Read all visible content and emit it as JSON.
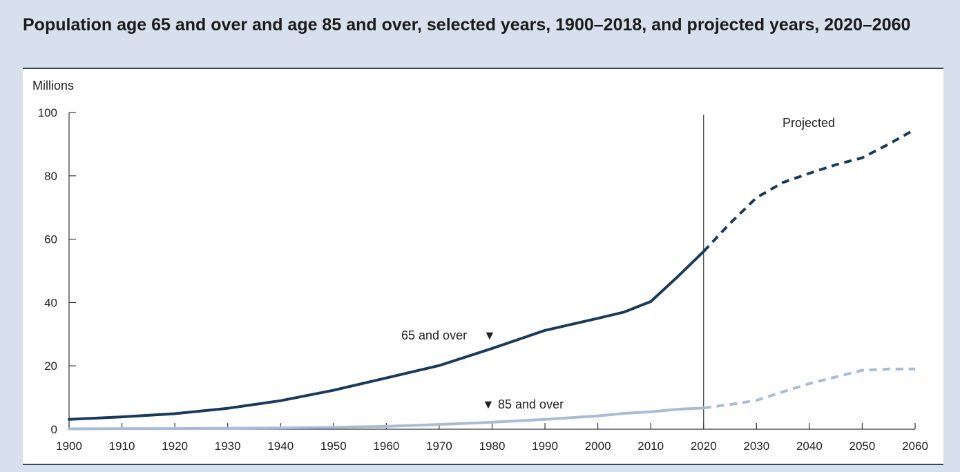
{
  "page": {
    "title": "Population age 65 and over and age 85 and over, selected years, 1900–2018, and projected years, 2020–2060"
  },
  "colors": {
    "background": "#d7e0ec",
    "panel": "#ffffff",
    "series_65": "#1a3a5c",
    "series_85": "#a9bcd6",
    "axis": "#333333"
  },
  "chart_data": {
    "type": "line",
    "title": "Population age 65 and over and age 85 and over, selected years, 1900–2018, and projected years, 2020–2060",
    "ylabel": "Millions",
    "xlabel": "",
    "xlim": [
      1900,
      2060
    ],
    "ylim": [
      0,
      100
    ],
    "x_ticks": [
      1900,
      1910,
      1920,
      1930,
      1940,
      1950,
      1960,
      1970,
      1980,
      1990,
      2000,
      2010,
      2020,
      2030,
      2040,
      2050,
      2060
    ],
    "y_ticks": [
      0,
      20,
      40,
      60,
      80,
      100
    ],
    "grid": false,
    "divider": {
      "x": 2020,
      "label": "Projected"
    },
    "series": [
      {
        "name": "65 and over",
        "historical": [
          {
            "x": 1900,
            "y": 3.1
          },
          {
            "x": 1910,
            "y": 3.9
          },
          {
            "x": 1920,
            "y": 4.9
          },
          {
            "x": 1930,
            "y": 6.6
          },
          {
            "x": 1940,
            "y": 9.0
          },
          {
            "x": 1950,
            "y": 12.3
          },
          {
            "x": 1960,
            "y": 16.2
          },
          {
            "x": 1970,
            "y": 20.1
          },
          {
            "x": 1980,
            "y": 25.5
          },
          {
            "x": 1990,
            "y": 31.2
          },
          {
            "x": 2000,
            "y": 35.0
          },
          {
            "x": 2005,
            "y": 37.0
          },
          {
            "x": 2010,
            "y": 40.3
          },
          {
            "x": 2015,
            "y": 48.0
          },
          {
            "x": 2020,
            "y": 56.1
          }
        ],
        "projected": [
          {
            "x": 2020,
            "y": 56.1
          },
          {
            "x": 2025,
            "y": 65.0
          },
          {
            "x": 2030,
            "y": 73.1
          },
          {
            "x": 2035,
            "y": 77.9
          },
          {
            "x": 2040,
            "y": 80.8
          },
          {
            "x": 2045,
            "y": 83.5
          },
          {
            "x": 2050,
            "y": 85.7
          },
          {
            "x": 2055,
            "y": 90.0
          },
          {
            "x": 2060,
            "y": 94.7
          }
        ]
      },
      {
        "name": "85 and over",
        "historical": [
          {
            "x": 1900,
            "y": 0.1
          },
          {
            "x": 1910,
            "y": 0.2
          },
          {
            "x": 1920,
            "y": 0.2
          },
          {
            "x": 1930,
            "y": 0.3
          },
          {
            "x": 1940,
            "y": 0.4
          },
          {
            "x": 1950,
            "y": 0.6
          },
          {
            "x": 1960,
            "y": 0.9
          },
          {
            "x": 1970,
            "y": 1.5
          },
          {
            "x": 1980,
            "y": 2.2
          },
          {
            "x": 1990,
            "y": 3.1
          },
          {
            "x": 2000,
            "y": 4.2
          },
          {
            "x": 2005,
            "y": 5.0
          },
          {
            "x": 2010,
            "y": 5.5
          },
          {
            "x": 2015,
            "y": 6.3
          },
          {
            "x": 2020,
            "y": 6.7
          }
        ],
        "projected": [
          {
            "x": 2020,
            "y": 6.7
          },
          {
            "x": 2025,
            "y": 7.8
          },
          {
            "x": 2030,
            "y": 9.1
          },
          {
            "x": 2035,
            "y": 11.8
          },
          {
            "x": 2040,
            "y": 14.4
          },
          {
            "x": 2045,
            "y": 16.5
          },
          {
            "x": 2050,
            "y": 18.6
          },
          {
            "x": 2055,
            "y": 19.0
          },
          {
            "x": 2060,
            "y": 19.0
          }
        ]
      }
    ],
    "annotations": [
      {
        "text": "65 and over",
        "marker": "▼",
        "marker_position": "after",
        "series": "65 and over"
      },
      {
        "text": "85 and over",
        "marker": "▼",
        "marker_position": "before",
        "series": "85 and over"
      }
    ]
  }
}
